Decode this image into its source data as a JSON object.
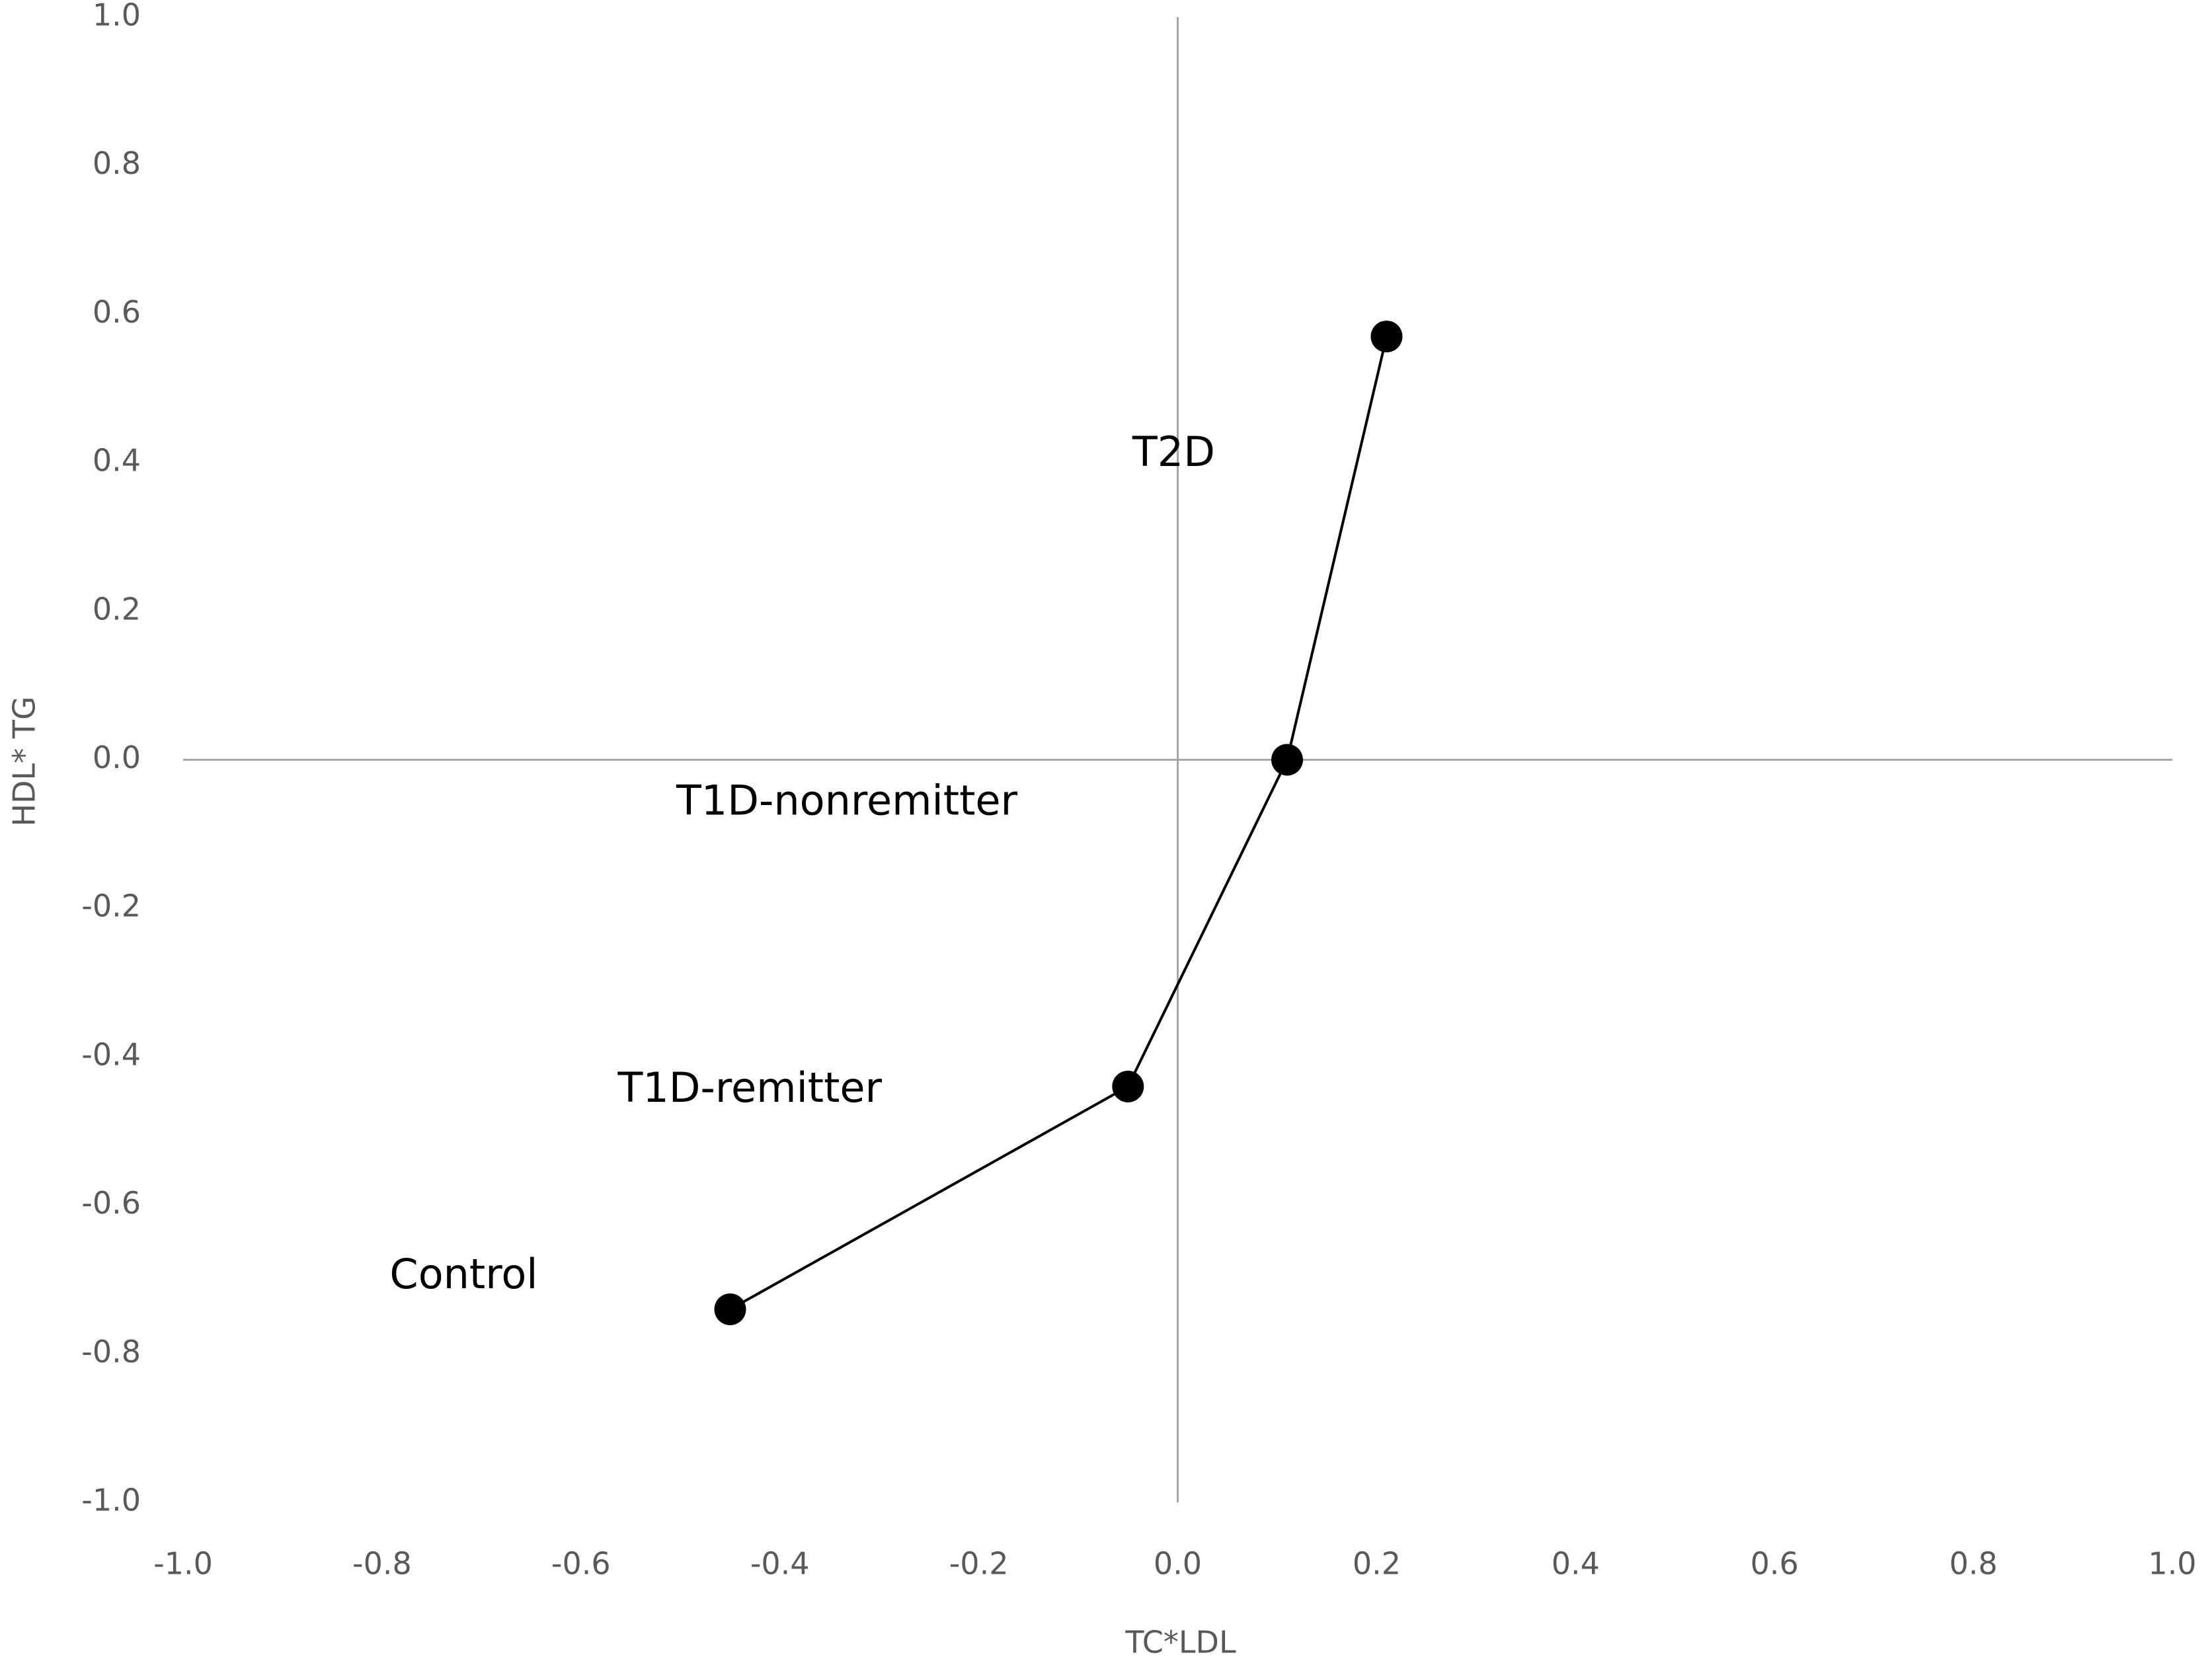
{
  "chart_data": {
    "type": "line",
    "x_label": "TC*LDL",
    "y_label": "HDL* TG",
    "x": [
      -0.45,
      -0.05,
      0.11,
      0.21
    ],
    "values": [
      -0.74,
      -0.44,
      0.0,
      0.57
    ],
    "labels": [
      "Control",
      "T1D-remitter",
      "T1D-nonremitter",
      "T2D"
    ],
    "color": "#000000",
    "axis_color": "#a6a6a6",
    "xlim": [
      -1,
      1
    ],
    "ylim": [
      -1,
      1
    ],
    "xticks": [
      {
        "value": -1,
        "label": "-1.0"
      },
      -0.8,
      -0.6,
      -0.4,
      -0.2,
      {
        "value": 0,
        "label": "0.0"
      },
      0.2,
      0.4,
      0.6,
      0.8,
      {
        "value": 1,
        "label": "1.0"
      }
    ],
    "yticks": [
      {
        "value": -1,
        "label": "-1.0"
      },
      -0.8,
      -0.6,
      -0.4,
      -0.2,
      {
        "value": 0,
        "label": "0.0"
      },
      0.2,
      0.4,
      0.6,
      0.8,
      {
        "value": 1,
        "label": "1.0"
      }
    ],
    "grid": false
  }
}
